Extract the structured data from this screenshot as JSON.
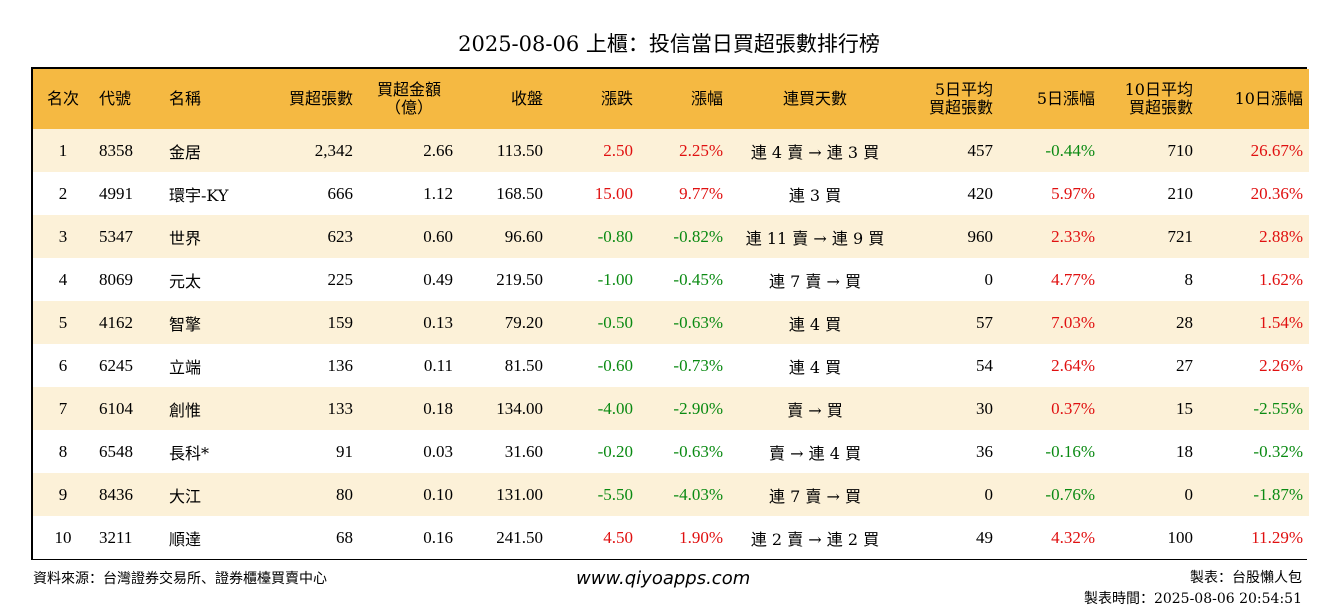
{
  "title": "2025-08-06 上櫃：投信當日買超張數排行榜",
  "headers": {
    "rank": "名次",
    "code": "代號",
    "name": "名稱",
    "net_buy_lots": "買超張數",
    "net_buy_amount_1": "買超金額",
    "net_buy_amount_2": "（億）",
    "close": "收盤",
    "change": "漲跌",
    "change_pct": "漲幅",
    "streak": "連買天數",
    "avg5_1": "5日平均",
    "avg5_2": "買超張數",
    "chg5": "5日漲幅",
    "avg10_1": "10日平均",
    "avg10_2": "買超張數",
    "chg10": "10日漲幅"
  },
  "rows": [
    {
      "rank": "1",
      "code": "8358",
      "name": "金居",
      "lots": "2,342",
      "amount": "2.66",
      "close": "113.50",
      "change": "2.50",
      "change_dir": "up",
      "pct": "2.25%",
      "pct_dir": "up",
      "streak": "連 4 賣 → 連 3 買",
      "avg5": "457",
      "chg5": "-0.44%",
      "chg5_dir": "down",
      "avg10": "710",
      "chg10": "26.67%",
      "chg10_dir": "up"
    },
    {
      "rank": "2",
      "code": "4991",
      "name": "環宇-KY",
      "lots": "666",
      "amount": "1.12",
      "close": "168.50",
      "change": "15.00",
      "change_dir": "up",
      "pct": "9.77%",
      "pct_dir": "up",
      "streak": "連 3 買",
      "avg5": "420",
      "chg5": "5.97%",
      "chg5_dir": "up",
      "avg10": "210",
      "chg10": "20.36%",
      "chg10_dir": "up"
    },
    {
      "rank": "3",
      "code": "5347",
      "name": "世界",
      "lots": "623",
      "amount": "0.60",
      "close": "96.60",
      "change": "-0.80",
      "change_dir": "down",
      "pct": "-0.82%",
      "pct_dir": "down",
      "streak": "連 11 賣 → 連 9 買",
      "avg5": "960",
      "chg5": "2.33%",
      "chg5_dir": "up",
      "avg10": "721",
      "chg10": "2.88%",
      "chg10_dir": "up"
    },
    {
      "rank": "4",
      "code": "8069",
      "name": "元太",
      "lots": "225",
      "amount": "0.49",
      "close": "219.50",
      "change": "-1.00",
      "change_dir": "down",
      "pct": "-0.45%",
      "pct_dir": "down",
      "streak": "連 7 賣 → 買",
      "avg5": "0",
      "chg5": "4.77%",
      "chg5_dir": "up",
      "avg10": "8",
      "chg10": "1.62%",
      "chg10_dir": "up"
    },
    {
      "rank": "5",
      "code": "4162",
      "name": "智擎",
      "lots": "159",
      "amount": "0.13",
      "close": "79.20",
      "change": "-0.50",
      "change_dir": "down",
      "pct": "-0.63%",
      "pct_dir": "down",
      "streak": "連 4 買",
      "avg5": "57",
      "chg5": "7.03%",
      "chg5_dir": "up",
      "avg10": "28",
      "chg10": "1.54%",
      "chg10_dir": "up"
    },
    {
      "rank": "6",
      "code": "6245",
      "name": "立端",
      "lots": "136",
      "amount": "0.11",
      "close": "81.50",
      "change": "-0.60",
      "change_dir": "down",
      "pct": "-0.73%",
      "pct_dir": "down",
      "streak": "連 4 買",
      "avg5": "54",
      "chg5": "2.64%",
      "chg5_dir": "up",
      "avg10": "27",
      "chg10": "2.26%",
      "chg10_dir": "up"
    },
    {
      "rank": "7",
      "code": "6104",
      "name": "創惟",
      "lots": "133",
      "amount": "0.18",
      "close": "134.00",
      "change": "-4.00",
      "change_dir": "down",
      "pct": "-2.90%",
      "pct_dir": "down",
      "streak": "賣 → 買",
      "avg5": "30",
      "chg5": "0.37%",
      "chg5_dir": "up",
      "avg10": "15",
      "chg10": "-2.55%",
      "chg10_dir": "down"
    },
    {
      "rank": "8",
      "code": "6548",
      "name": "長科*",
      "lots": "91",
      "amount": "0.03",
      "close": "31.60",
      "change": "-0.20",
      "change_dir": "down",
      "pct": "-0.63%",
      "pct_dir": "down",
      "streak": "賣 → 連 4 買",
      "avg5": "36",
      "chg5": "-0.16%",
      "chg5_dir": "down",
      "avg10": "18",
      "chg10": "-0.32%",
      "chg10_dir": "down"
    },
    {
      "rank": "9",
      "code": "8436",
      "name": "大江",
      "lots": "80",
      "amount": "0.10",
      "close": "131.00",
      "change": "-5.50",
      "change_dir": "down",
      "pct": "-4.03%",
      "pct_dir": "down",
      "streak": "連 7 賣 → 買",
      "avg5": "0",
      "chg5": "-0.76%",
      "chg5_dir": "down",
      "avg10": "0",
      "chg10": "-1.87%",
      "chg10_dir": "down"
    },
    {
      "rank": "10",
      "code": "3211",
      "name": "順達",
      "lots": "68",
      "amount": "0.16",
      "close": "241.50",
      "change": "4.50",
      "change_dir": "up",
      "pct": "1.90%",
      "pct_dir": "up",
      "streak": "連 2 賣 → 連 2 買",
      "avg5": "49",
      "chg5": "4.32%",
      "chg5_dir": "up",
      "avg10": "100",
      "chg10": "11.29%",
      "chg10_dir": "up"
    }
  ],
  "footer": {
    "source": "資料來源：台灣證券交易所、證券櫃檯買賣中心",
    "site": "www.qiyoapps.com",
    "maker": "製表：台股懶人包",
    "made_time": "製表時間：2025-08-06 20:54:51"
  },
  "colors": {
    "header_bg": "#f5b942",
    "row_alt_bg": "#fcf1d8",
    "up": "#e01010",
    "down": "#0a8a12"
  }
}
